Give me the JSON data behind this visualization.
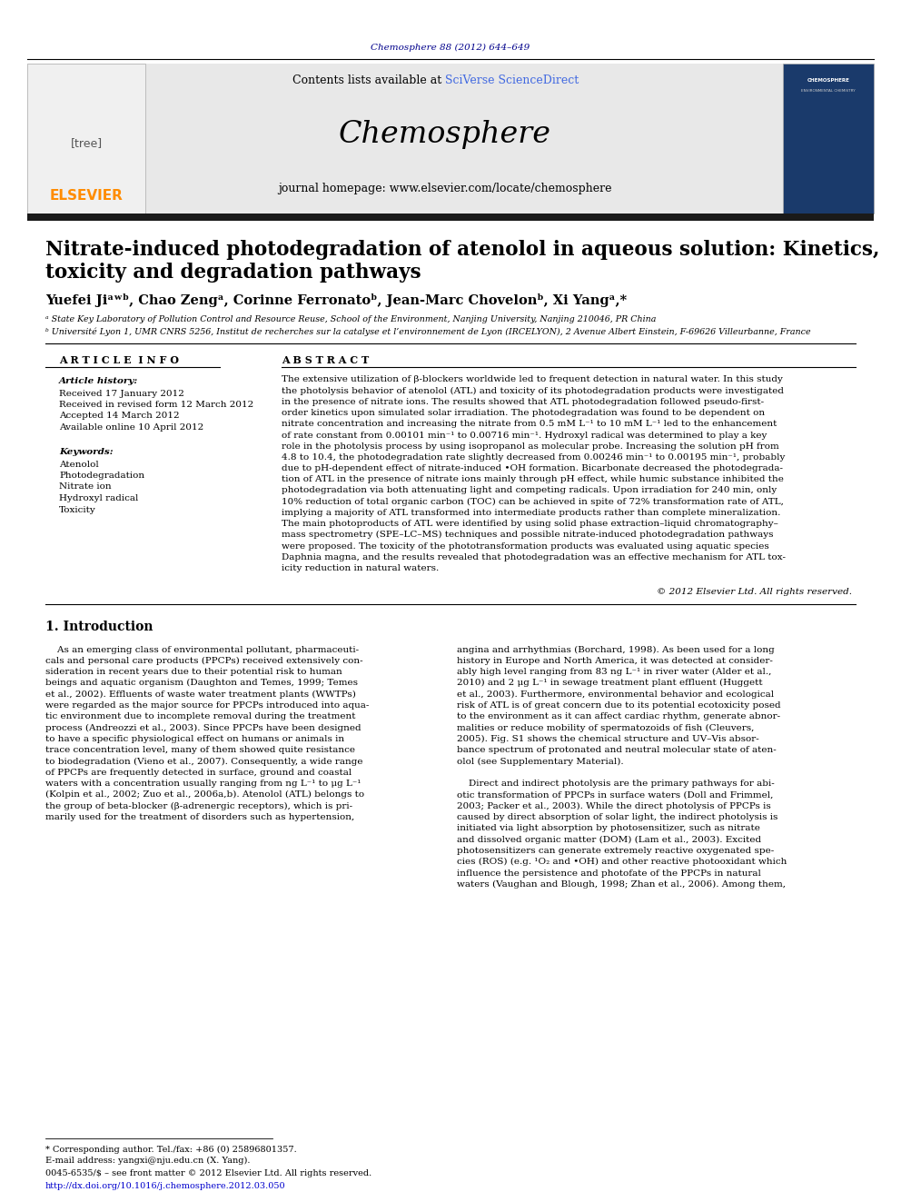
{
  "page_background": "#ffffff",
  "top_citation": "Chemosphere 88 (2012) 644–649",
  "top_citation_color": "#00008B",
  "header_bg": "#e8e8e8",
  "header_contents_text": "Contents lists available at ",
  "header_sciverse": "SciVerse ScienceDirect",
  "header_sciverse_color": "#4169E1",
  "header_journal": "Chemosphere",
  "header_homepage": "journal homepage: www.elsevier.com/locate/chemosphere",
  "black_bar_color": "#1a1a1a",
  "paper_title_line1": "Nitrate-induced photodegradation of atenolol in aqueous solution: Kinetics,",
  "paper_title_line2": "toxicity and degradation pathways",
  "authors_line": "Yuefei Jiᵃʷᵇ, Chao Zengᵃ, Corinne Ferronatoᵇ, Jean-Marc Chovelonᵇ, Xi Yangᵃ,*",
  "affiliation_a": "ᵃ State Key Laboratory of Pollution Control and Resource Reuse, School of the Environment, Nanjing University, Nanjing 210046, PR China",
  "affiliation_b": "ᵇ Université Lyon 1, UMR CNRS 5256, Institut de recherches sur la catalyse et l’environnement de Lyon (IRCELYON), 2 Avenue Albert Einstein, F-69626 Villeurbanne, France",
  "article_info_title": "A R T I C L E  I N F O",
  "abstract_title": "A B S T R A C T",
  "article_history_title": "Article history:",
  "history_lines": [
    "Received 17 January 2012",
    "Received in revised form 12 March 2012",
    "Accepted 14 March 2012",
    "Available online 10 April 2012"
  ],
  "keywords_title": "Keywords:",
  "keywords_lines": [
    "Atenolol",
    "Photodegradation",
    "Nitrate ion",
    "Hydroxyl radical",
    "Toxicity"
  ],
  "abstract_lines": [
    "The extensive utilization of β-blockers worldwide led to frequent detection in natural water. In this study",
    "the photolysis behavior of atenolol (ATL) and toxicity of its photodegradation products were investigated",
    "in the presence of nitrate ions. The results showed that ATL photodegradation followed pseudo-first-",
    "order kinetics upon simulated solar irradiation. The photodegradation was found to be dependent on",
    "nitrate concentration and increasing the nitrate from 0.5 mM L⁻¹ to 10 mM L⁻¹ led to the enhancement",
    "of rate constant from 0.00101 min⁻¹ to 0.00716 min⁻¹. Hydroxyl radical was determined to play a key",
    "role in the photolysis process by using isopropanol as molecular probe. Increasing the solution pH from",
    "4.8 to 10.4, the photodegradation rate slightly decreased from 0.00246 min⁻¹ to 0.00195 min⁻¹, probably",
    "due to pH-dependent effect of nitrate-induced •OH formation. Bicarbonate decreased the photodegrada-",
    "tion of ATL in the presence of nitrate ions mainly through pH effect, while humic substance inhibited the",
    "photodegradation via both attenuating light and competing radicals. Upon irradiation for 240 min, only",
    "10% reduction of total organic carbon (TOC) can be achieved in spite of 72% transformation rate of ATL,",
    "implying a majority of ATL transformed into intermediate products rather than complete mineralization.",
    "The main photoproducts of ATL were identified by using solid phase extraction–liquid chromatography–",
    "mass spectrometry (SPE–LC–MS) techniques and possible nitrate-induced photodegradation pathways",
    "were proposed. The toxicity of the phototransformation products was evaluated using aquatic species",
    "Daphnia magna, and the results revealed that photodegradation was an effective mechanism for ATL tox-",
    "icity reduction in natural waters."
  ],
  "copyright_text": "© 2012 Elsevier Ltd. All rights reserved.",
  "section1_title": "1. Introduction",
  "col1_lines": [
    "    As an emerging class of environmental pollutant, pharmaceuti-",
    "cals and personal care products (PPCPs) received extensively con-",
    "sideration in recent years due to their potential risk to human",
    "beings and aquatic organism (Daughton and Temes, 1999; Temes",
    "et al., 2002). Effluents of waste water treatment plants (WWTPs)",
    "were regarded as the major source for PPCPs introduced into aqua-",
    "tic environment due to incomplete removal during the treatment",
    "process (Andreozzi et al., 2003). Since PPCPs have been designed",
    "to have a specific physiological effect on humans or animals in",
    "trace concentration level, many of them showed quite resistance",
    "to biodegradation (Vieno et al., 2007). Consequently, a wide range",
    "of PPCPs are frequently detected in surface, ground and coastal",
    "waters with a concentration usually ranging from ng L⁻¹ to μg L⁻¹",
    "(Kolpin et al., 2002; Zuo et al., 2006a,b). Atenolol (ATL) belongs to",
    "the group of beta-blocker (β-adrenergic receptors), which is pri-",
    "marily used for the treatment of disorders such as hypertension,"
  ],
  "col2_lines": [
    "angina and arrhythmias (Borchard, 1998). As been used for a long",
    "history in Europe and North America, it was detected at consider-",
    "ably high level ranging from 83 ng L⁻¹ in river water (Alder et al.,",
    "2010) and 2 μg L⁻¹ in sewage treatment plant effluent (Huggett",
    "et al., 2003). Furthermore, environmental behavior and ecological",
    "risk of ATL is of great concern due to its potential ecotoxicity posed",
    "to the environment as it can affect cardiac rhythm, generate abnor-",
    "malities or reduce mobility of spermatozoids of fish (Cleuvers,",
    "2005). Fig. S1 shows the chemical structure and UV–Vis absor-",
    "bance spectrum of protonated and neutral molecular state of aten-",
    "olol (see Supplementary Material).",
    "",
    "    Direct and indirect photolysis are the primary pathways for abi-",
    "otic transformation of PPCPs in surface waters (Doll and Frimmel,",
    "2003; Packer et al., 2003). While the direct photolysis of PPCPs is",
    "caused by direct absorption of solar light, the indirect photolysis is",
    "initiated via light absorption by photosensitizer, such as nitrate",
    "and dissolved organic matter (DOM) (Lam et al., 2003). Excited",
    "photosensitizers can generate extremely reactive oxygenated spe-",
    "cies (ROS) (e.g. ¹O₂ and •OH) and other reactive photooxidant which",
    "influence the persistence and photofate of the PPCPs in natural",
    "waters (Vaughan and Blough, 1998; Zhan et al., 2006). Among them,"
  ],
  "footnote_star": "* Corresponding author. Tel./fax: +86 (0) 25896801357.",
  "footnote_email": "E-mail address: yangxi@nju.edu.cn (X. Yang).",
  "footnote_issn": "0045-6535/$ – see front matter © 2012 Elsevier Ltd. All rights reserved.",
  "footnote_doi": "http://dx.doi.org/10.1016/j.chemosphere.2012.03.050",
  "elsevier_color": "#FF8C00",
  "sciverse_color": "#4169E1",
  "doi_color": "#0000CD"
}
